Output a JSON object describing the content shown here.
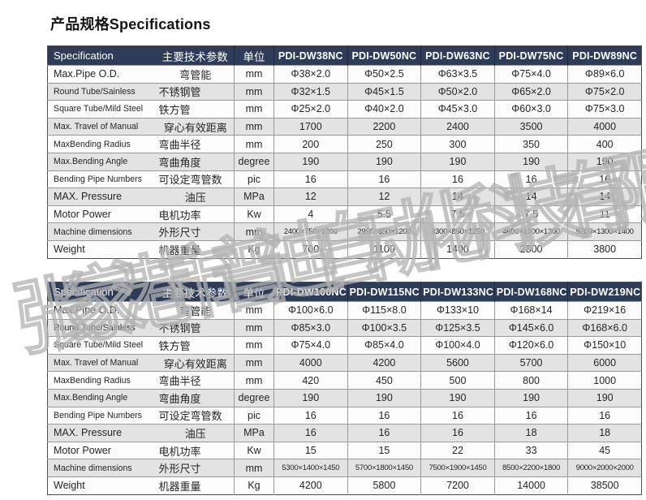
{
  "page": {
    "title": "产品规格Specifications"
  },
  "watermark": {
    "text": "张家港市普迪自动化科技有限公司"
  },
  "colors": {
    "header_bg": "#2e3c59",
    "header_text": "#ffffff",
    "row_bg": "#fcfcfc",
    "row_alt_bg": "#e3e3e3",
    "grid_line": "#9a9a9a",
    "watermark": "#b2b2b2"
  },
  "tables": [
    {
      "header": {
        "spec": "Specification",
        "param": "主要技术参数",
        "unit": "单位",
        "models": [
          "PDI-DW38NC",
          "PDI-DW50NC",
          "PDI-DW63NC",
          "PDI-DW75NC",
          "PDI-DW89NC"
        ]
      },
      "rows": [
        {
          "spec": "Max.Pipe O.D.",
          "param": "弯管能",
          "unit": "mm",
          "values": [
            "Φ38×2.0",
            "Φ50×2.5",
            "Φ63×3.5",
            "Φ75×4.0",
            "Φ89×6.0"
          ]
        },
        {
          "spec": "Round Tube/Sainless",
          "param": "不锈钢管",
          "unit": "mm",
          "values": [
            "Φ32×1.5",
            "Φ45×1.5",
            "Φ50×2.0",
            "Φ65×2.0",
            "Φ75×2.0"
          ]
        },
        {
          "spec": "Square Tube/Mild Steel",
          "param": "铁方管",
          "unit": "mm",
          "values": [
            "Φ25×2.0",
            "Φ40×2.0",
            "Φ45×3.0",
            "Φ60×3.0",
            "Φ75×3.0"
          ]
        },
        {
          "spec": "Max. Travel of Manual",
          "param": "穿心有效距离",
          "unit": "mm",
          "values": [
            "1700",
            "2200",
            "2400",
            "3500",
            "4000"
          ]
        },
        {
          "spec": "MaxBending Radius",
          "param": "弯曲半径",
          "unit": "mm",
          "values": [
            "200",
            "250",
            "300",
            "350",
            "400"
          ]
        },
        {
          "spec": "Max.Bending Angle",
          "param": "弯曲角度",
          "unit": "degree",
          "values": [
            "190",
            "190",
            "190",
            "190",
            "190"
          ]
        },
        {
          "spec": "Bending Pipe Numbers",
          "param": "可设定弯管数",
          "unit": "pic",
          "values": [
            "16",
            "16",
            "16",
            "16",
            "16"
          ]
        },
        {
          "spec": "MAX. Pressure",
          "param": "油压",
          "unit": "MPa",
          "values": [
            "12",
            "12",
            "14",
            "14",
            "14"
          ]
        },
        {
          "spec": "Motor Power",
          "param": "电机功率",
          "unit": "Kw",
          "values": [
            "4",
            "5.5",
            "7.5",
            "7.5",
            "11"
          ]
        },
        {
          "spec": "Machine dimensions",
          "param": "外形尺寸",
          "unit": "mm",
          "values": [
            "2400×750×1200",
            "2950×850×1200",
            "3300×850×1250",
            "4600×1300×1300",
            "5200×1300×1400"
          ]
        },
        {
          "spec": "Weight",
          "param": "机器重量",
          "unit": "Kg",
          "values": [
            "700",
            "1100",
            "1400",
            "2800",
            "3800"
          ]
        }
      ]
    },
    {
      "header": {
        "spec": "Specification",
        "param": "主要技术参数",
        "unit": "单位",
        "models": [
          "PDI-DW100NC",
          "PDI-DW115NC",
          "PDI-DW133NC",
          "PDI-DW168NC",
          "PDI-DW219NC"
        ]
      },
      "rows": [
        {
          "spec": "Max.Pipe O.D.",
          "param": "弯管能",
          "unit": "mm",
          "values": [
            "Φ100×6.0",
            "Φ115×8.0",
            "Φ133×10",
            "Φ168×14",
            "Φ219×16"
          ]
        },
        {
          "spec": "Round Tube/Sainless",
          "param": "不锈钢管",
          "unit": "mm",
          "values": [
            "Φ85×3.0",
            "Φ100×3.5",
            "Φ125×3.5",
            "Φ145×6.0",
            "Φ168×6.0"
          ]
        },
        {
          "spec": "Square Tube/Mild Steel",
          "param": "铁方管",
          "unit": "mm",
          "values": [
            "Φ75×4.0",
            "Φ85×4.0",
            "Φ100×4.0",
            "Φ120×6.0",
            "Φ150×10"
          ]
        },
        {
          "spec": "Max. Travel of Manual",
          "param": "穿心有效距离",
          "unit": "mm",
          "values": [
            "4000",
            "4200",
            "5600",
            "5700",
            "6000"
          ]
        },
        {
          "spec": "MaxBending Radius",
          "param": "弯曲半径",
          "unit": "mm",
          "values": [
            "420",
            "450",
            "500",
            "800",
            "1000"
          ]
        },
        {
          "spec": "Max.Bending Angle",
          "param": "弯曲角度",
          "unit": "degree",
          "values": [
            "190",
            "190",
            "190",
            "190",
            "190"
          ]
        },
        {
          "spec": "Bending Pipe Numbers",
          "param": "可设定弯管数",
          "unit": "pic",
          "values": [
            "16",
            "16",
            "16",
            "16",
            "16"
          ]
        },
        {
          "spec": "MAX. Pressure",
          "param": "油压",
          "unit": "MPa",
          "values": [
            "16",
            "16",
            "16",
            "18",
            "18"
          ]
        },
        {
          "spec": "Motor Power",
          "param": "电机功率",
          "unit": "Kw",
          "values": [
            "15",
            "15",
            "22",
            "33",
            "45"
          ]
        },
        {
          "spec": "Machine dimensions",
          "param": "外形尺寸",
          "unit": "mm",
          "values": [
            "5300×1400×1450",
            "5700×1800×1450",
            "7500×1900×1450",
            "8500×2200×1800",
            "9000×2000×2000"
          ]
        },
        {
          "spec": "Weight",
          "param": "机器重量",
          "unit": "Kg",
          "values": [
            "4200",
            "5800",
            "7200",
            "14000",
            "38500"
          ]
        }
      ]
    }
  ]
}
